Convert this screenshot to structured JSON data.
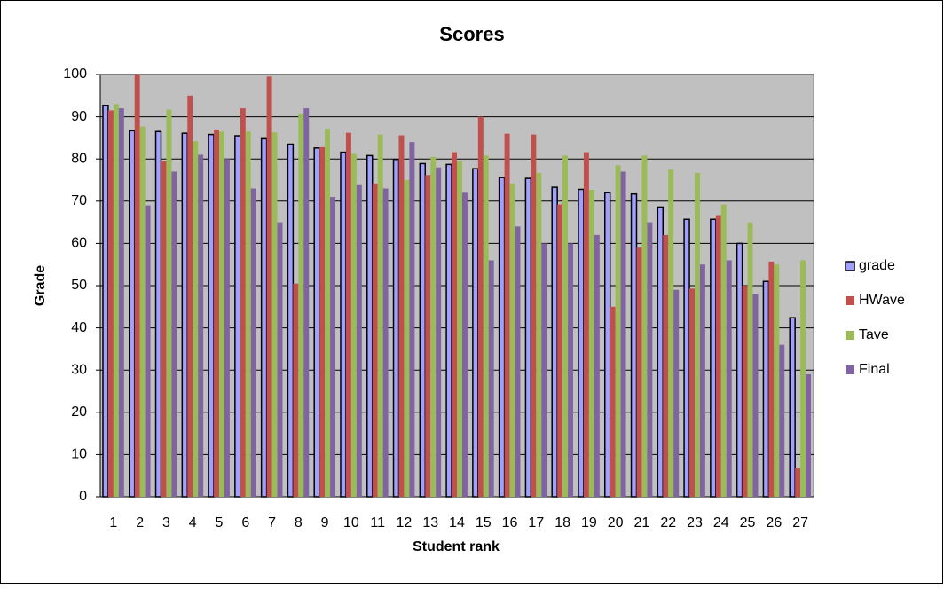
{
  "chart_data": {
    "type": "bar",
    "title": "Scores",
    "x_label": "Student rank",
    "y_label": "Grade",
    "categories": [
      1,
      2,
      3,
      4,
      5,
      6,
      7,
      8,
      9,
      10,
      11,
      12,
      13,
      14,
      15,
      16,
      17,
      18,
      19,
      20,
      21,
      22,
      23,
      24,
      25,
      26,
      27
    ],
    "series": [
      {
        "name": "grade",
        "color": "#a0a0ff",
        "values": [
          92.7,
          86.7,
          86.5,
          86.1,
          85.8,
          85.5,
          84.8,
          83.5,
          82.6,
          81.6,
          80.8,
          79.9,
          78.9,
          78.7,
          77.7,
          75.6,
          75.4,
          73.3,
          72.8,
          72,
          71.7,
          68.6,
          65.7,
          65.7,
          60,
          51,
          42.4
        ]
      },
      {
        "name": "HWave",
        "color": "#c0504d",
        "values": [
          91.5,
          100,
          79.5,
          95,
          87,
          92,
          99.5,
          50.5,
          82.8,
          86.2,
          74.2,
          85.6,
          76.2,
          81.6,
          90,
          86,
          85.8,
          69.2,
          81.6,
          45,
          59,
          62,
          49.3,
          66.7,
          50,
          55.7,
          6.7
        ]
      },
      {
        "name": "Tave",
        "color": "#9bbb59",
        "values": [
          93,
          87.7,
          91.7,
          84.2,
          86.5,
          86.5,
          86.3,
          90.8,
          87.2,
          81.2,
          85.8,
          75,
          80.5,
          79.5,
          80.8,
          74.2,
          76.7,
          80.8,
          72.7,
          78.5,
          80.8,
          77.5,
          76.7,
          69.2,
          65,
          55,
          56
        ]
      },
      {
        "name": "Final",
        "color": "#8064a2",
        "values": [
          92,
          69,
          77,
          81,
          80,
          73,
          65,
          92,
          71,
          74,
          73,
          84,
          78,
          72,
          56,
          64,
          60,
          60,
          62,
          77,
          65,
          49,
          55,
          56,
          48,
          36,
          29
        ]
      }
    ],
    "ylim": [
      0,
      100
    ],
    "yticks": [
      0,
      10,
      20,
      30,
      40,
      50,
      60,
      70,
      80,
      90,
      100
    ],
    "grid": true,
    "legend": "right"
  }
}
